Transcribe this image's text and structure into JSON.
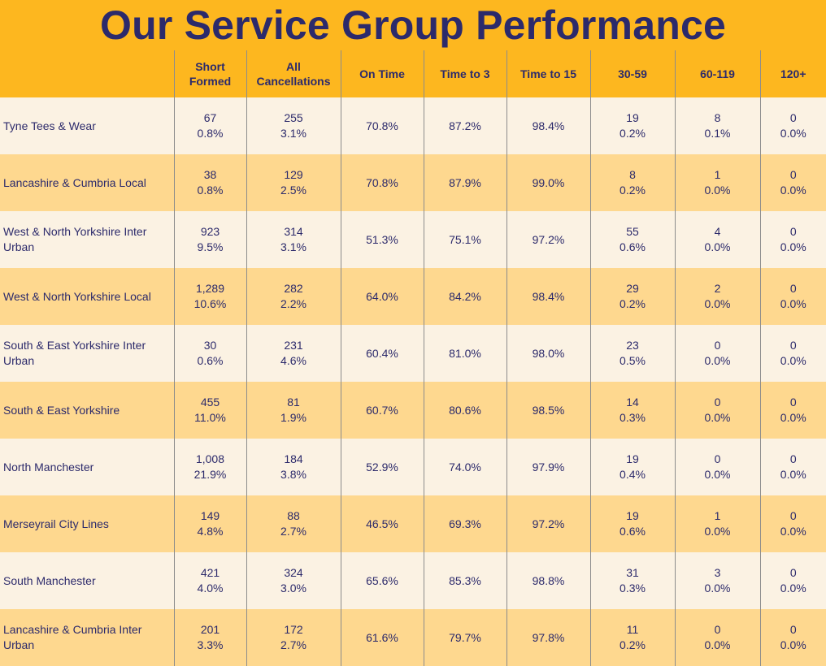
{
  "title": "Our Service Group Performance",
  "colors": {
    "header_bg": "#fdb71f",
    "row_light": "#fbf2e3",
    "row_dark": "#fed88f",
    "text": "#2c2a6b"
  },
  "columns": {
    "short_formed": [
      "Short",
      "Formed"
    ],
    "all_cancellations": [
      "All",
      "Cancellations"
    ],
    "on_time": "On Time",
    "time_to_3": "Time to 3",
    "time_to_15": "Time to 15",
    "d30_59": "30-59",
    "d60_119": "60-119",
    "d120_plus": "120+"
  },
  "rows": [
    {
      "name": [
        "Tyne Tees & Wear",
        ""
      ],
      "short_formed": [
        "67",
        "0.8%"
      ],
      "cancellations": [
        "255",
        "3.1%"
      ],
      "on_time": "70.8%",
      "time_to_3": "87.2%",
      "time_to_15": "98.4%",
      "d30_59": [
        "19",
        "0.2%"
      ],
      "d60_119": [
        "8",
        "0.1%"
      ],
      "d120_plus": [
        "0",
        "0.0%"
      ]
    },
    {
      "name": [
        "Lancashire & Cumbria Local",
        ""
      ],
      "short_formed": [
        "38",
        "0.8%"
      ],
      "cancellations": [
        "129",
        "2.5%"
      ],
      "on_time": "70.8%",
      "time_to_3": "87.9%",
      "time_to_15": "99.0%",
      "d30_59": [
        "8",
        "0.2%"
      ],
      "d60_119": [
        "1",
        "0.0%"
      ],
      "d120_plus": [
        "0",
        "0.0%"
      ]
    },
    {
      "name": [
        "West & North Yorkshire Inter",
        "Urban"
      ],
      "short_formed": [
        "923",
        "9.5%"
      ],
      "cancellations": [
        "314",
        "3.1%"
      ],
      "on_time": "51.3%",
      "time_to_3": "75.1%",
      "time_to_15": "97.2%",
      "d30_59": [
        "55",
        "0.6%"
      ],
      "d60_119": [
        "4",
        "0.0%"
      ],
      "d120_plus": [
        "0",
        "0.0%"
      ]
    },
    {
      "name": [
        "West & North Yorkshire Local",
        ""
      ],
      "short_formed": [
        "1,289",
        "10.6%"
      ],
      "cancellations": [
        "282",
        "2.2%"
      ],
      "on_time": "64.0%",
      "time_to_3": "84.2%",
      "time_to_15": "98.4%",
      "d30_59": [
        "29",
        "0.2%"
      ],
      "d60_119": [
        "2",
        "0.0%"
      ],
      "d120_plus": [
        "0",
        "0.0%"
      ]
    },
    {
      "name": [
        "South & East Yorkshire Inter",
        "Urban"
      ],
      "short_formed": [
        "30",
        "0.6%"
      ],
      "cancellations": [
        "231",
        "4.6%"
      ],
      "on_time": "60.4%",
      "time_to_3": "81.0%",
      "time_to_15": "98.0%",
      "d30_59": [
        "23",
        "0.5%"
      ],
      "d60_119": [
        "0",
        "0.0%"
      ],
      "d120_plus": [
        "0",
        "0.0%"
      ]
    },
    {
      "name": [
        "South & East Yorkshire",
        ""
      ],
      "short_formed": [
        "455",
        "11.0%"
      ],
      "cancellations": [
        "81",
        "1.9%"
      ],
      "on_time": "60.7%",
      "time_to_3": "80.6%",
      "time_to_15": "98.5%",
      "d30_59": [
        "14",
        "0.3%"
      ],
      "d60_119": [
        "0",
        "0.0%"
      ],
      "d120_plus": [
        "0",
        "0.0%"
      ]
    },
    {
      "name": [
        "North Manchester",
        ""
      ],
      "short_formed": [
        "1,008",
        "21.9%"
      ],
      "cancellations": [
        "184",
        "3.8%"
      ],
      "on_time": "52.9%",
      "time_to_3": "74.0%",
      "time_to_15": "97.9%",
      "d30_59": [
        "19",
        "0.4%"
      ],
      "d60_119": [
        "0",
        "0.0%"
      ],
      "d120_plus": [
        "0",
        "0.0%"
      ]
    },
    {
      "name": [
        "Merseyrail City Lines",
        ""
      ],
      "short_formed": [
        "149",
        "4.8%"
      ],
      "cancellations": [
        "88",
        "2.7%"
      ],
      "on_time": "46.5%",
      "time_to_3": "69.3%",
      "time_to_15": "97.2%",
      "d30_59": [
        "19",
        "0.6%"
      ],
      "d60_119": [
        "1",
        "0.0%"
      ],
      "d120_plus": [
        "0",
        "0.0%"
      ]
    },
    {
      "name": [
        "South Manchester",
        ""
      ],
      "short_formed": [
        "421",
        "4.0%"
      ],
      "cancellations": [
        "324",
        "3.0%"
      ],
      "on_time": "65.6%",
      "time_to_3": "85.3%",
      "time_to_15": "98.8%",
      "d30_59": [
        "31",
        "0.3%"
      ],
      "d60_119": [
        "3",
        "0.0%"
      ],
      "d120_plus": [
        "0",
        "0.0%"
      ]
    },
    {
      "name": [
        "Lancashire & Cumbria Inter",
        "Urban"
      ],
      "short_formed": [
        "201",
        "3.3%"
      ],
      "cancellations": [
        "172",
        "2.7%"
      ],
      "on_time": "61.6%",
      "time_to_3": "79.7%",
      "time_to_15": "97.8%",
      "d30_59": [
        "11",
        "0.2%"
      ],
      "d60_119": [
        "0",
        "0.0%"
      ],
      "d120_plus": [
        "0",
        "0.0%"
      ]
    }
  ]
}
